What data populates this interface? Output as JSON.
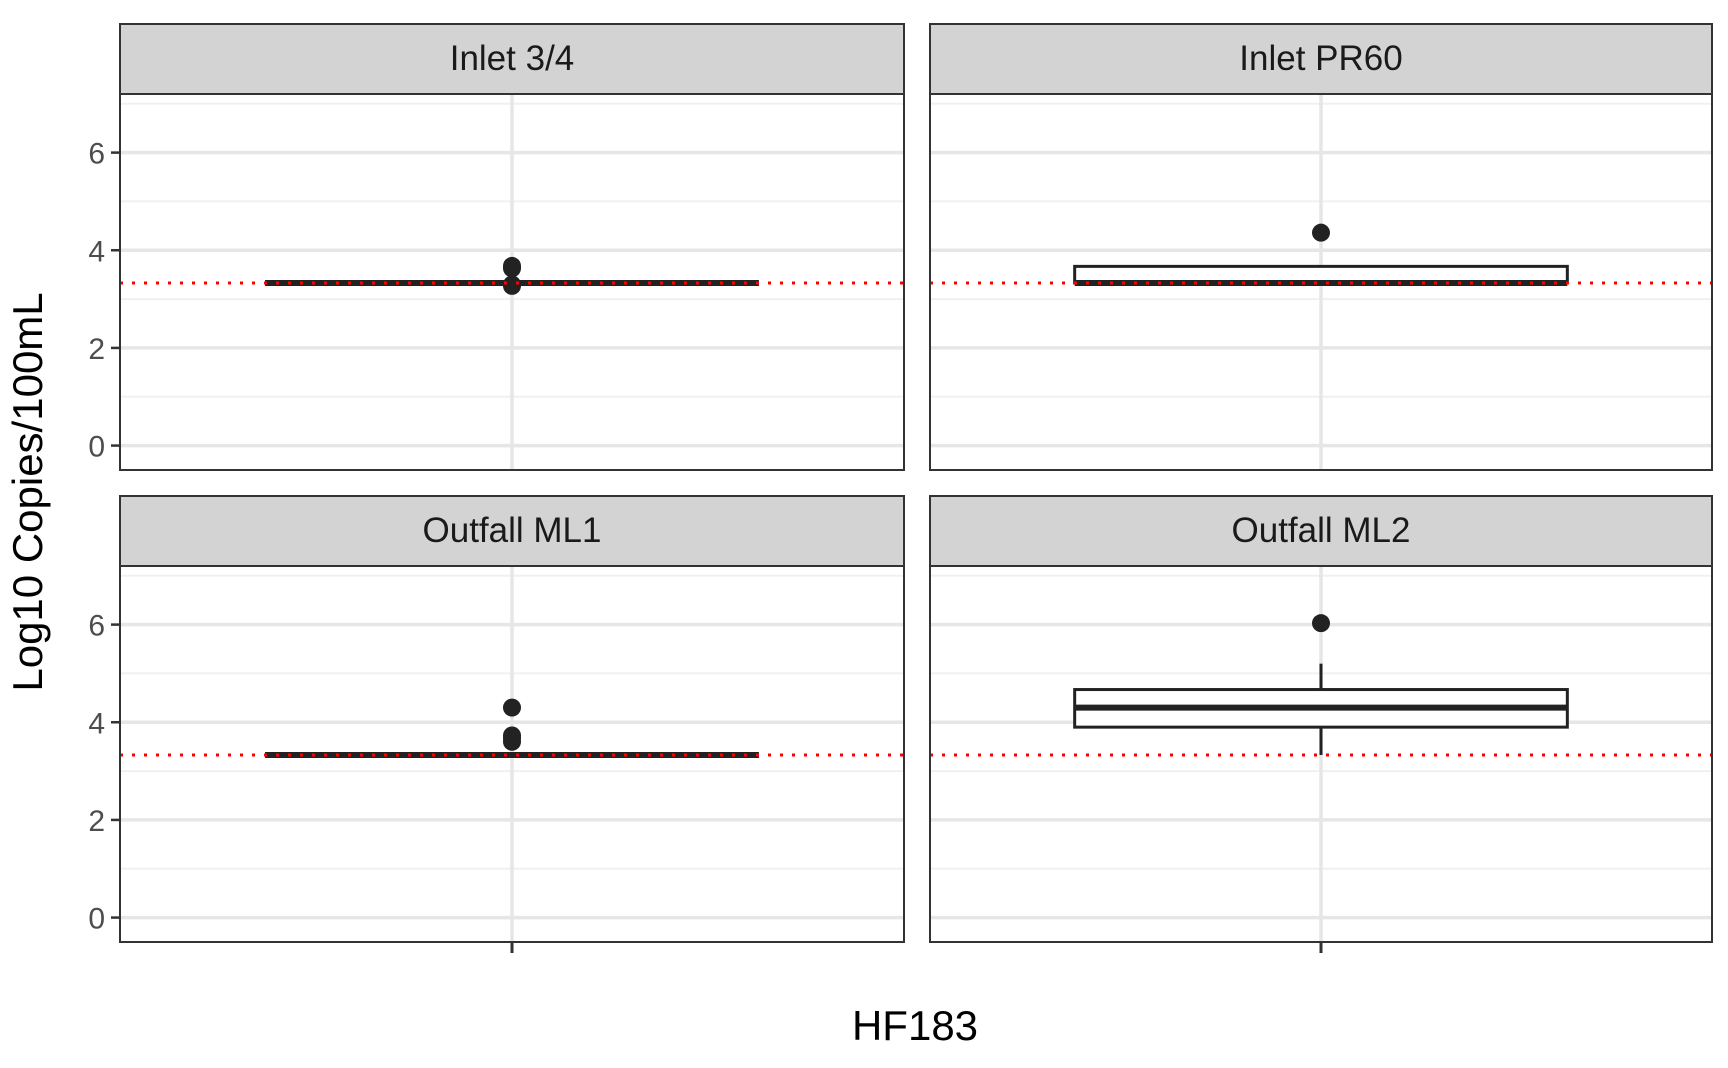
{
  "chart_data": {
    "type": "boxplot",
    "layout": "facet-grid-2x2",
    "xlabel": "HF183",
    "ylabel": "Log10 Copies/100mL",
    "ylim": [
      -0.5,
      7.2
    ],
    "yticks": [
      0,
      2,
      4,
      6
    ],
    "xticks": [
      ""
    ],
    "grid": true,
    "reference_line": {
      "y": 3.33,
      "style": "dotted",
      "color": "#ff0000"
    },
    "colors": {
      "box": "#222222",
      "strip": "#d3d3d3",
      "grid": "#e6e6e6",
      "reference": "#ff0000"
    },
    "panels": [
      {
        "label": "Inlet 3/4",
        "box": {
          "lower_whisker": 3.33,
          "q1": 3.33,
          "median": 3.33,
          "q3": 3.33,
          "upper_whisker": 3.33
        },
        "outliers": [
          3.63,
          3.68,
          3.27,
          3.3
        ]
      },
      {
        "label": "Inlet PR60",
        "box": {
          "lower_whisker": 3.33,
          "q1": 3.33,
          "median": 3.33,
          "q3": 3.67,
          "upper_whisker": 3.67
        },
        "outliers": [
          4.36
        ]
      },
      {
        "label": "Outfall ML1",
        "box": {
          "lower_whisker": 3.33,
          "q1": 3.33,
          "median": 3.33,
          "q3": 3.33,
          "upper_whisker": 3.33
        },
        "outliers": [
          4.3,
          3.73,
          3.67,
          3.6
        ]
      },
      {
        "label": "Outfall ML2",
        "box": {
          "lower_whisker": 3.33,
          "q1": 3.9,
          "median": 4.3,
          "q3": 4.67,
          "upper_whisker": 5.2
        },
        "outliers": [
          6.03
        ]
      }
    ]
  }
}
